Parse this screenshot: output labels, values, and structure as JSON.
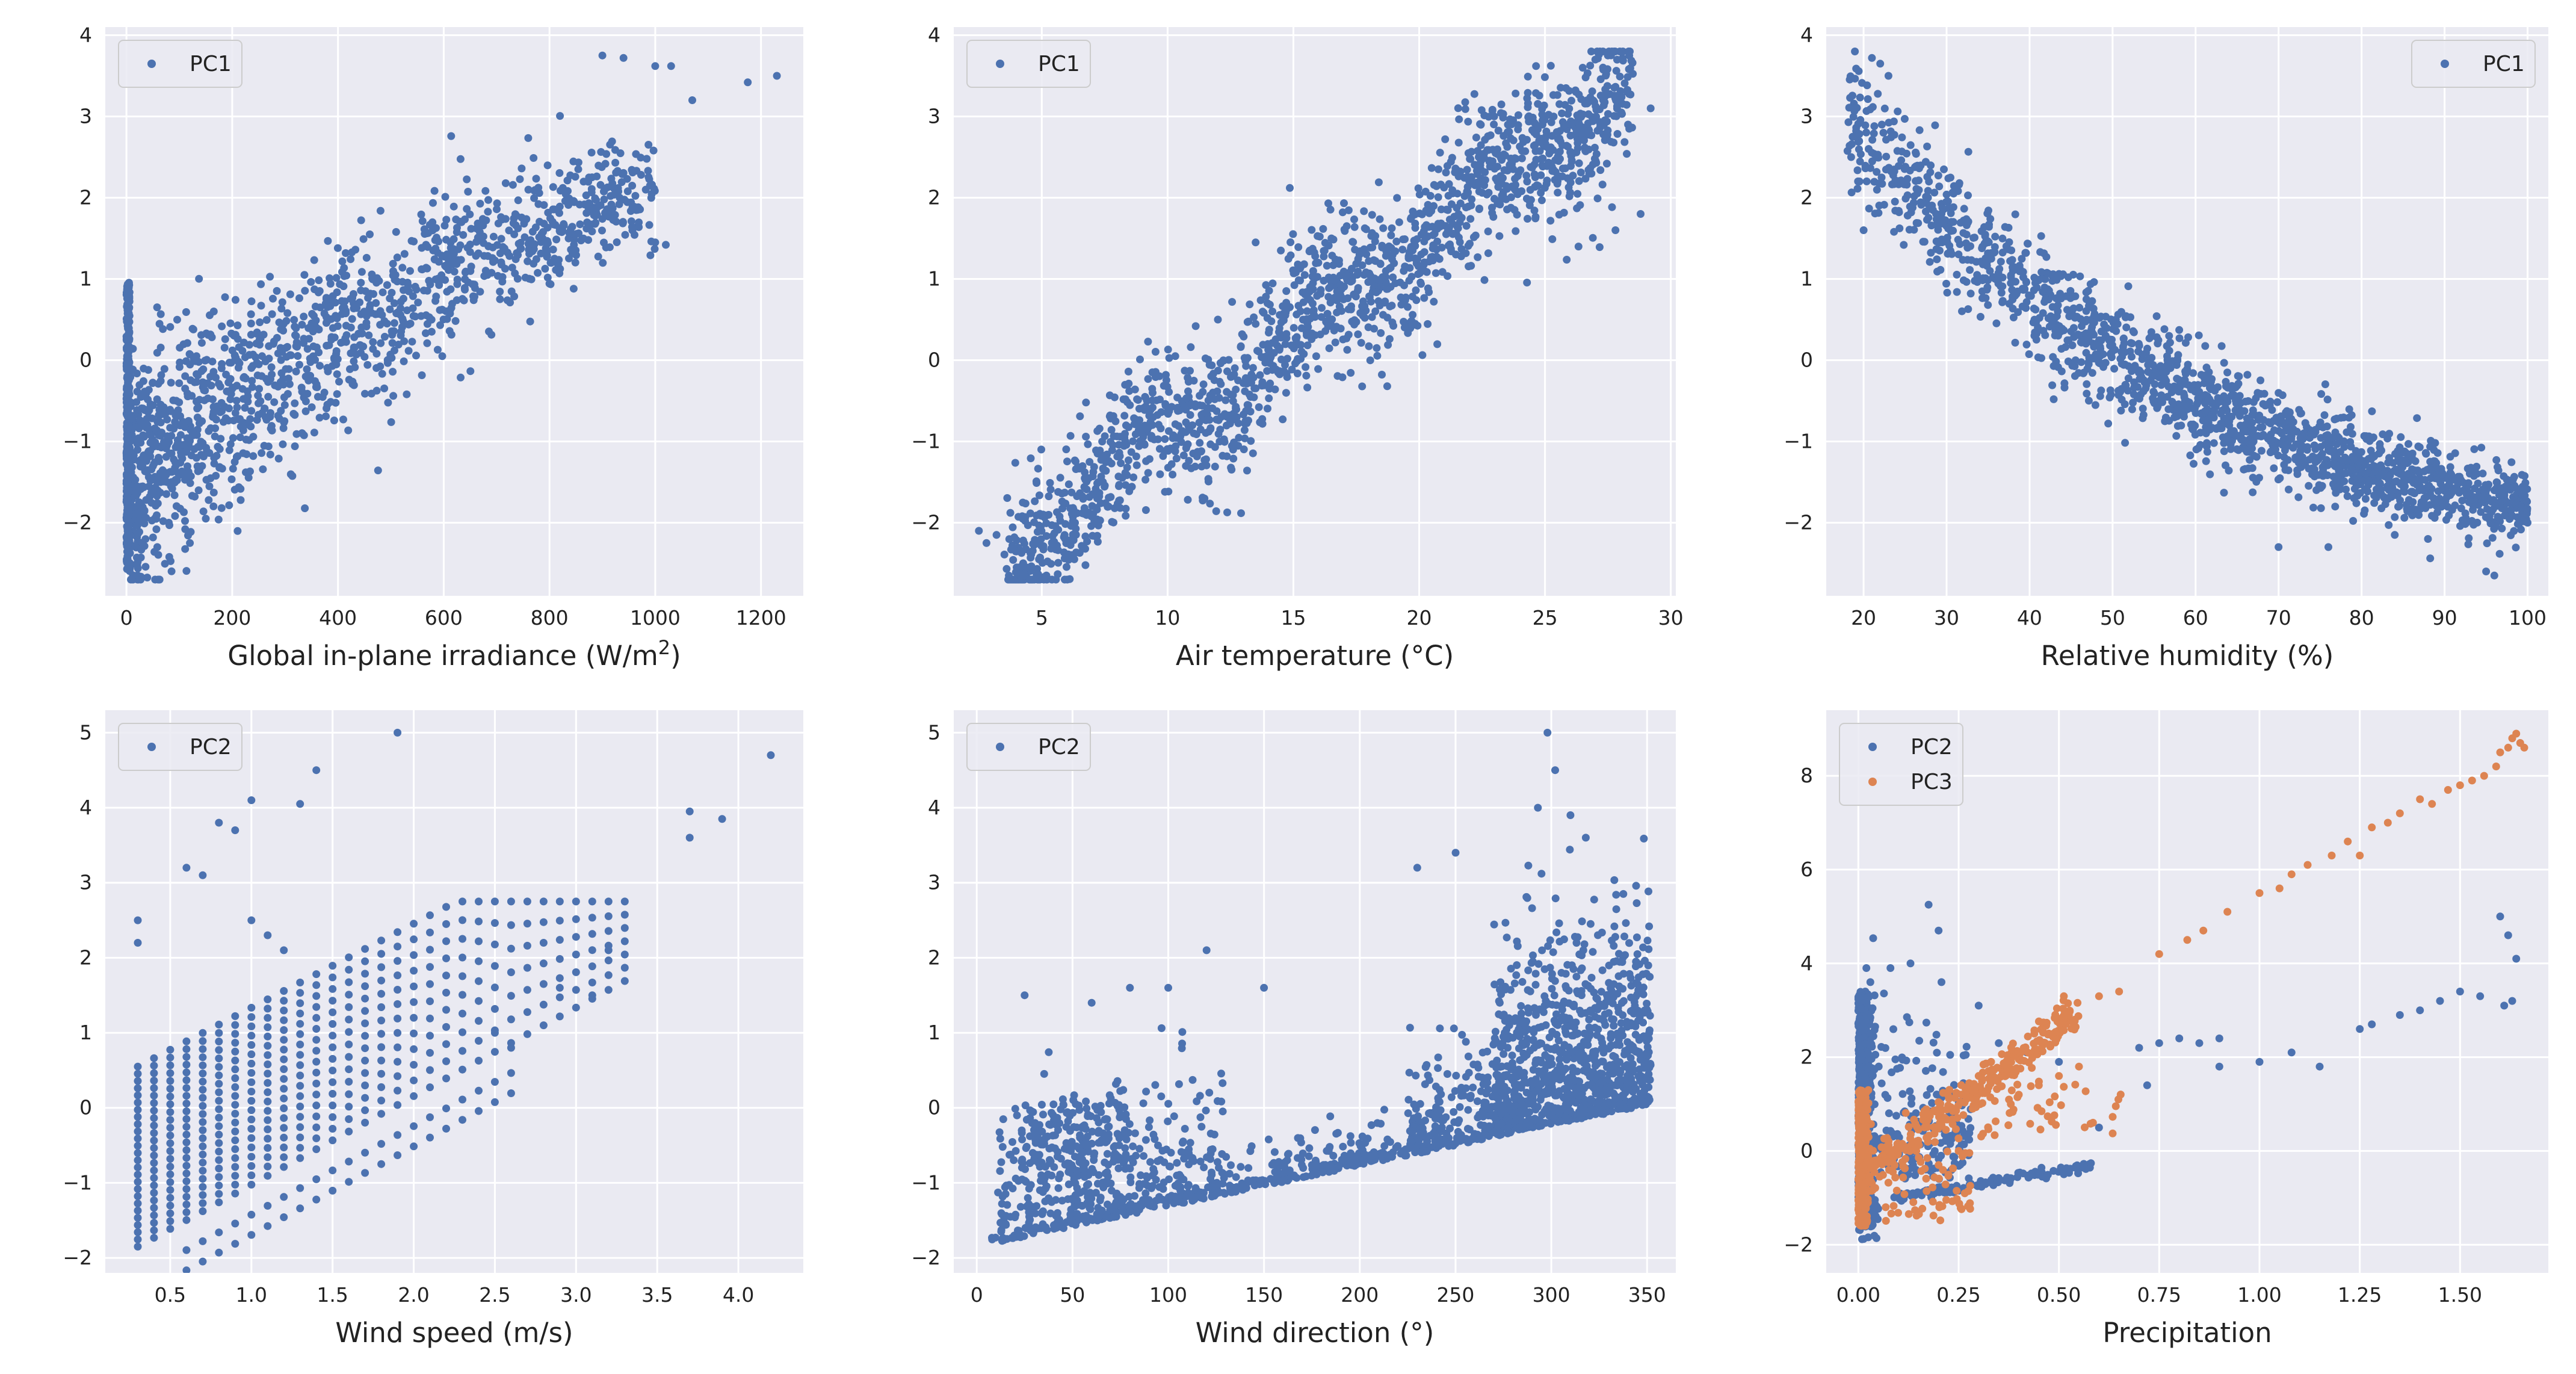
{
  "figure": {
    "background": "#ffffff",
    "plot_background": "#EAEAF2",
    "grid_color": "#ffffff",
    "text_color": "#222222",
    "colors": {
      "C0": "#4C72B0",
      "C1": "#DD8452"
    }
  },
  "chart_data": [
    {
      "type": "scatter",
      "xlabel": "Global in-plane irradiance (W/m²)",
      "ylabel": "",
      "xlim": [
        -40,
        1280
      ],
      "ylim": [
        -2.9,
        4.1
      ],
      "xticks": [
        0,
        200,
        400,
        600,
        800,
        1000,
        1200
      ],
      "yticks": [
        -2,
        -1,
        0,
        1,
        2,
        3,
        4
      ],
      "legend_position": "top-left",
      "series": [
        {
          "name": "PC1",
          "color": "#4C72B0",
          "gen": {
            "kind": "curve",
            "n": 1500,
            "seed": 11,
            "xmin": 0,
            "xmax": 1000,
            "xPow": 1.6,
            "slope": 0.0052,
            "intercept": -1.5,
            "noise": 0.65,
            "yClip": [
              -2.7,
              3.8
            ],
            "spikeX": 0,
            "spikeN": 260,
            "spikeY": [
              -2.6,
              1.0
            ]
          },
          "points": [
            [
              1000,
              1.45
            ],
            [
              1020,
              1.42
            ],
            [
              1175,
              3.42
            ],
            [
              1230,
              3.5
            ],
            [
              1070,
              3.2
            ],
            [
              1000,
              3.62
            ],
            [
              1030,
              3.62
            ],
            [
              940,
              3.72
            ],
            [
              900,
              3.75
            ],
            [
              530,
              -0.42
            ],
            [
              410,
              -0.73
            ],
            [
              150,
              -1.95
            ],
            [
              180,
              -1.82
            ],
            [
              80,
              -2.0
            ],
            [
              120,
              -2.25
            ]
          ]
        }
      ]
    },
    {
      "type": "scatter",
      "xlabel": "Air temperature (°C)",
      "ylabel": "",
      "xlim": [
        1.5,
        30.2
      ],
      "ylim": [
        -2.9,
        4.1
      ],
      "xticks": [
        5,
        10,
        15,
        20,
        25,
        30
      ],
      "yticks": [
        -2,
        -1,
        0,
        1,
        2,
        3,
        4
      ],
      "legend_position": "top-left",
      "series": [
        {
          "name": "PC1",
          "color": "#4C72B0",
          "gen": {
            "kind": "band",
            "n": 1700,
            "seed": 23,
            "xmin": 3.5,
            "xmax": 28.5,
            "slope": 0.235,
            "intercept": -3.25,
            "noise": 0.45,
            "yClip": [
              -2.7,
              3.8
            ]
          },
          "points": [
            [
              2.5,
              -2.1
            ],
            [
              2.8,
              -2.25
            ],
            [
              3.2,
              -2.15
            ],
            [
              4.0,
              -2.55
            ],
            [
              4.3,
              -2.65
            ],
            [
              5.5,
              -2.3
            ],
            [
              27.5,
              3.75
            ],
            [
              27.0,
              3.7
            ],
            [
              26.5,
              3.6
            ],
            [
              28.3,
              2.9
            ],
            [
              29.2,
              3.1
            ],
            [
              28.8,
              1.8
            ],
            [
              27.8,
              1.6
            ],
            [
              13.5,
              1.45
            ],
            [
              14.5,
              1.35
            ],
            [
              12.0,
              0.5
            ]
          ]
        }
      ]
    },
    {
      "type": "scatter",
      "xlabel": "Relative humidity (%)",
      "ylabel": "",
      "xlim": [
        15.5,
        102.5
      ],
      "ylim": [
        -2.9,
        4.1
      ],
      "xticks": [
        20,
        30,
        40,
        50,
        60,
        70,
        80,
        90,
        100
      ],
      "yticks": [
        -2,
        -1,
        0,
        1,
        2,
        3,
        4
      ],
      "legend_position": "top-right",
      "series": [
        {
          "name": "PC1",
          "color": "#4C72B0",
          "gen": {
            "kind": "decay",
            "n": 1700,
            "seed": 37,
            "xmin": 18,
            "xmax": 100,
            "a": 5.7,
            "k": 0.0225,
            "off": -2.7,
            "noise": 0.35,
            "yClip": [
              -2.7,
              3.8
            ]
          },
          "points": [
            [
              21,
              3.72
            ],
            [
              22,
              3.65
            ],
            [
              23,
              3.5
            ],
            [
              19,
              2.75
            ],
            [
              18.5,
              2.5
            ],
            [
              19.5,
              2.2
            ],
            [
              20,
              1.6
            ],
            [
              96,
              -2.65
            ],
            [
              95,
              -2.6
            ],
            [
              100,
              -2.0
            ],
            [
              98,
              -1.85
            ],
            [
              88,
              -2.2
            ],
            [
              84,
              -2.15
            ],
            [
              70,
              -2.3
            ],
            [
              76,
              -2.3
            ]
          ]
        }
      ]
    },
    {
      "type": "scatter",
      "xlabel": "Wind speed (m/s)",
      "ylabel": "",
      "xlim": [
        0.1,
        4.4
      ],
      "ylim": [
        -2.2,
        5.3
      ],
      "xticks": [
        0.5,
        1.0,
        1.5,
        2.0,
        2.5,
        3.0,
        3.5,
        4.0
      ],
      "xtickLabels": [
        "0.5",
        "1.0",
        "1.5",
        "2.0",
        "2.5",
        "3.0",
        "3.5",
        "4.0"
      ],
      "yticks": [
        -2,
        -1,
        0,
        1,
        2,
        3,
        4,
        5
      ],
      "legend_position": "top-left",
      "series": [
        {
          "name": "PC2",
          "color": "#4C72B0",
          "gen": {
            "kind": "columns",
            "seed": 41,
            "xmin": 0.3,
            "xmax": 3.3,
            "step": 0.1,
            "lowBase": -1.85,
            "lowSlope": 1.18,
            "highBase": 0.55,
            "highSlope": 1.12,
            "perCol": 26,
            "lowerBand": 0.85
          },
          "points": [
            [
              1.9,
              5.0
            ],
            [
              4.2,
              4.7
            ],
            [
              1.4,
              4.5
            ],
            [
              1.0,
              4.1
            ],
            [
              1.3,
              4.05
            ],
            [
              3.7,
              3.95
            ],
            [
              3.9,
              3.85
            ],
            [
              0.8,
              3.8
            ],
            [
              0.9,
              3.7
            ],
            [
              3.7,
              3.6
            ],
            [
              0.3,
              2.5
            ],
            [
              0.3,
              2.2
            ],
            [
              0.6,
              3.2
            ],
            [
              0.7,
              3.1
            ],
            [
              1.0,
              2.5
            ],
            [
              1.2,
              2.1
            ],
            [
              1.1,
              2.3
            ],
            [
              3.2,
              2.1
            ],
            [
              3.1,
              1.5
            ],
            [
              2.9,
              1.6
            ],
            [
              2.6,
              0.8
            ],
            [
              2.5,
              1.0
            ]
          ]
        }
      ]
    },
    {
      "type": "scatter",
      "xlabel": "Wind direction (°)",
      "ylabel": "",
      "xlim": [
        -12,
        365
      ],
      "ylim": [
        -2.2,
        5.3
      ],
      "xticks": [
        0,
        50,
        100,
        150,
        200,
        250,
        300,
        350
      ],
      "yticks": [
        -2,
        -1,
        0,
        1,
        2,
        3,
        4,
        5
      ],
      "legend_position": "top-left",
      "series": [
        {
          "name": "PC2",
          "color": "#4C72B0",
          "gen": {
            "kind": "winddir",
            "seed": 53,
            "xmin": 5,
            "xmax": 352,
            "baseA": -1.85,
            "baseB": 0.0054,
            "n": 1900
          },
          "points": [
            [
              298,
              5.0
            ],
            [
              293,
              4.0
            ],
            [
              302,
              4.5
            ],
            [
              310,
              3.9
            ],
            [
              318,
              3.6
            ],
            [
              250,
              3.4
            ],
            [
              230,
              3.2
            ],
            [
              150,
              1.6
            ],
            [
              120,
              2.1
            ],
            [
              25,
              1.5
            ],
            [
              60,
              1.4
            ],
            [
              80,
              1.6
            ],
            [
              100,
              1.6
            ]
          ]
        }
      ]
    },
    {
      "type": "scatter",
      "xlabel": "Precipitation",
      "ylabel": "",
      "xlim": [
        -0.08,
        1.72
      ],
      "ylim": [
        -2.6,
        9.4
      ],
      "xticks": [
        0.0,
        0.25,
        0.5,
        0.75,
        1.0,
        1.25,
        1.5
      ],
      "xtickLabels": [
        "0.00",
        "0.25",
        "0.50",
        "0.75",
        "1.00",
        "1.25",
        "1.50"
      ],
      "yticks": [
        -2,
        0,
        2,
        4,
        6,
        8
      ],
      "legend_position": "top-left",
      "series": [
        {
          "name": "PC2",
          "color": "#4C72B0",
          "gen": {
            "kind": "precipPC2",
            "seed": 67,
            "n": 900
          },
          "points": [
            [
              0.02,
              3.9
            ],
            [
              0.03,
              3.6
            ],
            [
              0.08,
              3.9
            ],
            [
              0.2,
              4.7
            ],
            [
              0.13,
              4.0
            ],
            [
              0.3,
              3.1
            ],
            [
              0.35,
              2.3
            ],
            [
              0.42,
              2.1
            ],
            [
              0.5,
              1.9
            ],
            [
              0.7,
              2.2
            ],
            [
              0.75,
              2.3
            ],
            [
              0.8,
              2.4
            ],
            [
              0.85,
              2.3
            ],
            [
              0.9,
              2.4
            ],
            [
              1.0,
              1.9
            ],
            [
              1.08,
              2.1
            ],
            [
              1.15,
              1.8
            ],
            [
              1.25,
              2.6
            ],
            [
              1.28,
              2.7
            ],
            [
              1.35,
              2.9
            ],
            [
              1.4,
              3.0
            ],
            [
              1.45,
              3.2
            ],
            [
              1.5,
              3.4
            ],
            [
              1.55,
              3.3
            ],
            [
              1.6,
              5.0
            ],
            [
              1.62,
              4.6
            ],
            [
              1.64,
              4.1
            ],
            [
              1.63,
              3.2
            ],
            [
              1.61,
              3.1
            ],
            [
              0.9,
              1.8
            ],
            [
              0.72,
              1.4
            ],
            [
              0.6,
              0.5
            ]
          ]
        },
        {
          "name": "PC3",
          "color": "#DD8452",
          "gen": {
            "kind": "precipPC3",
            "seed": 79,
            "n": 850
          },
          "points": [
            [
              0.6,
              3.3
            ],
            [
              0.65,
              3.4
            ],
            [
              0.75,
              4.2
            ],
            [
              0.82,
              4.5
            ],
            [
              0.86,
              4.7
            ],
            [
              0.92,
              5.1
            ],
            [
              1.0,
              5.5
            ],
            [
              1.05,
              5.6
            ],
            [
              1.08,
              5.9
            ],
            [
              1.12,
              6.1
            ],
            [
              1.18,
              6.3
            ],
            [
              1.22,
              6.6
            ],
            [
              1.25,
              6.3
            ],
            [
              1.28,
              6.9
            ],
            [
              1.32,
              7.0
            ],
            [
              1.35,
              7.2
            ],
            [
              1.4,
              7.5
            ],
            [
              1.43,
              7.4
            ],
            [
              1.47,
              7.7
            ],
            [
              1.5,
              7.8
            ],
            [
              1.53,
              7.9
            ],
            [
              1.56,
              8.0
            ],
            [
              1.59,
              8.2
            ],
            [
              1.62,
              8.6
            ],
            [
              1.63,
              8.8
            ],
            [
              1.64,
              8.9
            ],
            [
              1.65,
              8.7
            ],
            [
              1.66,
              8.6
            ],
            [
              1.6,
              8.5
            ],
            [
              0.55,
              1.8
            ],
            [
              0.5,
              1.6
            ],
            [
              0.45,
              1.4
            ],
            [
              0.4,
              1.2
            ],
            [
              0.38,
              1.0
            ],
            [
              0.3,
              1.6
            ],
            [
              0.25,
              0.0
            ],
            [
              0.2,
              -0.3
            ]
          ]
        }
      ]
    }
  ]
}
